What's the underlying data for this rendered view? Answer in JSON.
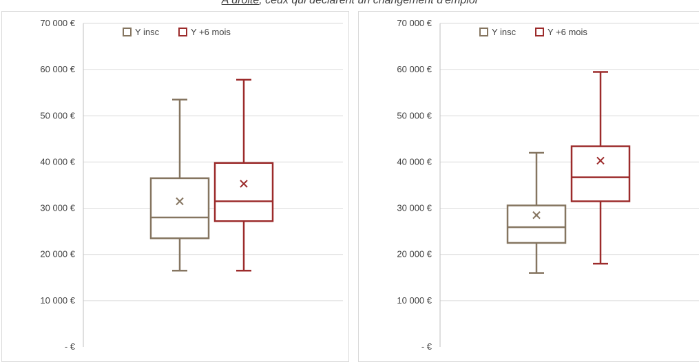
{
  "caption": {
    "lead": "A droite",
    "rest": ", ceux qui déclarent un changement d'emploi"
  },
  "colors": {
    "y_insc": "#857560",
    "y_6mois": "#9c2b2b",
    "grid": "#d9d9d9",
    "axis": "#bfbfbf"
  },
  "chart_data": [
    {
      "type": "boxplot",
      "ylim": [
        0,
        70000
      ],
      "yticks": [
        0,
        10000,
        20000,
        30000,
        40000,
        50000,
        60000,
        70000
      ],
      "ytick_labels": [
        "-  €",
        "10 000 €",
        "20 000 €",
        "30 000 €",
        "40 000 €",
        "50 000 €",
        "60 000 €",
        "70 000 €"
      ],
      "grid": true,
      "legend": "top-left",
      "series": [
        {
          "name": "Y insc",
          "min": 16500,
          "q1": 23500,
          "median": 28000,
          "q3": 36500,
          "max": 53500,
          "mean": 31500
        },
        {
          "name": "Y +6 mois",
          "min": 16500,
          "q1": 27200,
          "median": 31500,
          "q3": 39800,
          "max": 57800,
          "mean": 35300
        }
      ]
    },
    {
      "type": "boxplot",
      "ylim": [
        0,
        70000
      ],
      "yticks": [
        0,
        10000,
        20000,
        30000,
        40000,
        50000,
        60000,
        70000
      ],
      "ytick_labels": [
        "-  €",
        "10 000 €",
        "20 000 €",
        "30 000 €",
        "40 000 €",
        "50 000 €",
        "60 000 €",
        "70 000 €"
      ],
      "grid": true,
      "legend": "top-left",
      "series": [
        {
          "name": "Y insc",
          "min": 16000,
          "q1": 22500,
          "median": 25900,
          "q3": 30600,
          "max": 42000,
          "mean": 28500
        },
        {
          "name": "Y +6 mois",
          "min": 18000,
          "q1": 31500,
          "median": 36700,
          "q3": 43400,
          "max": 59500,
          "mean": 40300
        }
      ]
    }
  ]
}
